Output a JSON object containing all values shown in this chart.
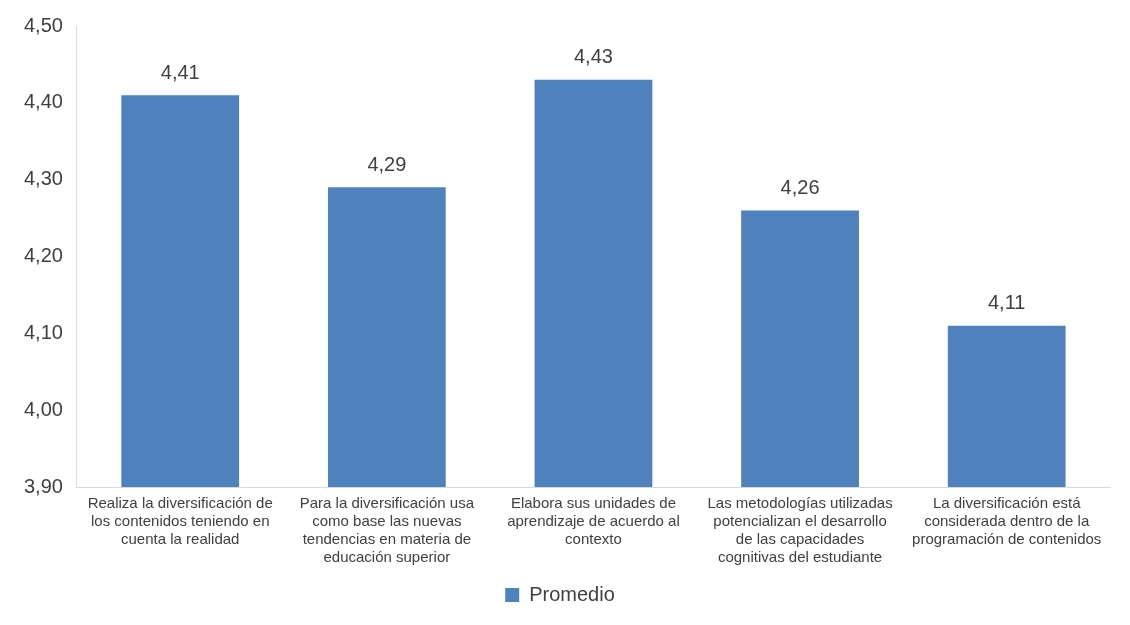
{
  "chart_data": {
    "type": "bar",
    "categories": [
      "Realiza la diversificación de los contenidos teniendo en cuenta la realidad",
      "Para la diversificación usa como base las nuevas tendencias en materia de educación superior",
      "Elabora sus unidades de aprendizaje de acuerdo al contexto",
      "Las metodologías utilizadas potencializan el desarrollo de las capacidades cognitivas del estudiante",
      "La diversificación está considerada dentro de la programación de contenidos"
    ],
    "series": [
      {
        "name": "Promedio",
        "color": "#4f81bd",
        "values": [
          4.41,
          4.29,
          4.43,
          4.26,
          4.11
        ],
        "value_labels": [
          "4,41",
          "4,29",
          "4,43",
          "4,26",
          "4,11"
        ]
      }
    ],
    "ylim": [
      3.9,
      4.5
    ],
    "yticks": [
      {
        "value": 3.9,
        "label": "3,90"
      },
      {
        "value": 4.0,
        "label": "4,00"
      },
      {
        "value": 4.1,
        "label": "4,10"
      },
      {
        "value": 4.2,
        "label": "4,20"
      },
      {
        "value": 4.3,
        "label": "4,30"
      },
      {
        "value": 4.4,
        "label": "4,40"
      },
      {
        "value": 4.5,
        "label": "4,50"
      }
    ],
    "grid": false,
    "legend": "bottom"
  }
}
